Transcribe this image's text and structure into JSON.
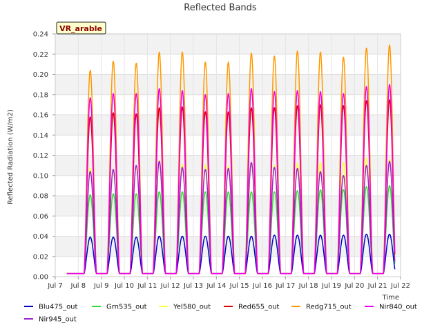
{
  "chart_data": {
    "type": "line",
    "title": "Reflected Bands",
    "ylabel": "Reflected Radiation (W/m2)",
    "xlabel": "Time",
    "badge": "VR_arable",
    "ylim": [
      0,
      0.24
    ],
    "yticks": [
      "0.00",
      "0.02",
      "0.04",
      "0.06",
      "0.08",
      "0.10",
      "0.12",
      "0.14",
      "0.16",
      "0.18",
      "0.20",
      "0.22",
      "0.24"
    ],
    "xlim": [
      "2024-07-07",
      "2024-07-22"
    ],
    "xticks": [
      "Jul 7",
      "Jul 8",
      "Jul 9",
      "Jul 10",
      "Jul 11",
      "Jul 12",
      "Jul 13",
      "Jul 14",
      "Jul 15",
      "Jul 16",
      "Jul 17",
      "Jul 18",
      "Jul 19",
      "Jul 20",
      "Jul 21",
      "Jul 22"
    ],
    "grid": true,
    "legend_position": "bottom",
    "data_start": "2024-07-07 12:00",
    "data_end": "2024-07-21 18:00",
    "daily_peak_dates": [
      "2024-07-08",
      "2024-07-09",
      "2024-07-10",
      "2024-07-11",
      "2024-07-12",
      "2024-07-13",
      "2024-07-14",
      "2024-07-15",
      "2024-07-16",
      "2024-07-17",
      "2024-07-18",
      "2024-07-19",
      "2024-07-20",
      "2024-07-21"
    ],
    "night_value": 0.003,
    "series": [
      {
        "name": "Blu475_out",
        "color": "#0000cc",
        "peaks": [
          0.039,
          0.039,
          0.039,
          0.04,
          0.04,
          0.04,
          0.04,
          0.04,
          0.041,
          0.041,
          0.041,
          0.041,
          0.042,
          0.042
        ]
      },
      {
        "name": "Grn535_out",
        "color": "#33dd33",
        "peaks": [
          0.081,
          0.082,
          0.082,
          0.084,
          0.084,
          0.084,
          0.084,
          0.084,
          0.084,
          0.085,
          0.086,
          0.086,
          0.089,
          0.09
        ]
      },
      {
        "name": "Yel580_out",
        "color": "#ffff33",
        "peaks": [
          0.107,
          0.106,
          0.108,
          0.115,
          0.111,
          0.11,
          0.109,
          0.112,
          0.11,
          0.112,
          0.113,
          0.113,
          0.117,
          0.116
        ]
      },
      {
        "name": "Red655_out",
        "color": "#dd0000",
        "peaks": [
          0.158,
          0.162,
          0.161,
          0.167,
          0.168,
          0.163,
          0.163,
          0.167,
          0.167,
          0.169,
          0.17,
          0.169,
          0.174,
          0.175
        ]
      },
      {
        "name": "Redg715_out",
        "color": "#ff9900",
        "peaks": [
          0.204,
          0.213,
          0.211,
          0.222,
          0.222,
          0.212,
          0.212,
          0.221,
          0.218,
          0.223,
          0.222,
          0.217,
          0.226,
          0.229
        ]
      },
      {
        "name": "Nir840_out",
        "color": "#ee00ee",
        "peaks": [
          0.177,
          0.181,
          0.181,
          0.186,
          0.184,
          0.18,
          0.181,
          0.186,
          0.183,
          0.184,
          0.183,
          0.181,
          0.188,
          0.19
        ]
      },
      {
        "name": "Nir945_out",
        "color": "#9922cc",
        "peaks": [
          0.104,
          0.106,
          0.11,
          0.114,
          0.108,
          0.106,
          0.107,
          0.113,
          0.108,
          0.107,
          0.104,
          0.1,
          0.11,
          0.114
        ]
      }
    ]
  }
}
